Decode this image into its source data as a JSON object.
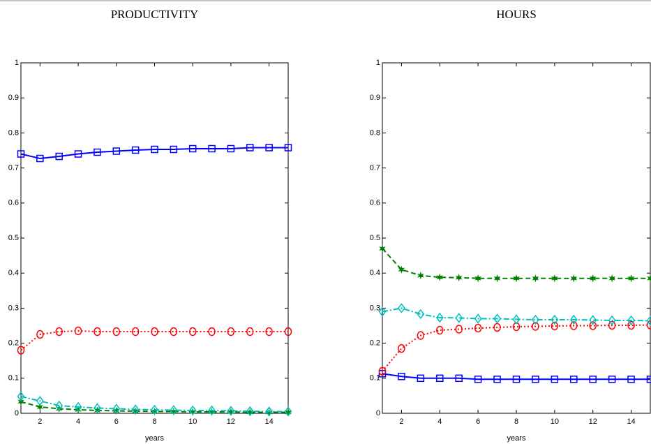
{
  "chart_data": [
    {
      "type": "line",
      "title": "PRODUCTIVITY",
      "xlabel": "years",
      "x": [
        1,
        2,
        3,
        4,
        5,
        6,
        7,
        8,
        9,
        10,
        11,
        12,
        13,
        14,
        15
      ],
      "xlim": [
        1,
        15
      ],
      "xticks": [
        2,
        4,
        6,
        8,
        10,
        12,
        14
      ],
      "ylim": [
        0,
        1
      ],
      "yticks": [
        0,
        0.1,
        0.2,
        0.3,
        0.4,
        0.5,
        0.6,
        0.7,
        0.8,
        0.9,
        1
      ],
      "series": [
        {
          "color": "#0000ff",
          "linestyle": "solid",
          "marker": "square",
          "values": [
            0.74,
            0.727,
            0.733,
            0.74,
            0.745,
            0.748,
            0.751,
            0.753,
            0.753,
            0.755,
            0.755,
            0.755,
            0.758,
            0.758,
            0.758
          ]
        },
        {
          "color": "#ff0000",
          "linestyle": "dotted",
          "marker": "circle",
          "values": [
            0.18,
            0.225,
            0.233,
            0.235,
            0.233,
            0.233,
            0.233,
            0.233,
            0.233,
            0.233,
            0.233,
            0.233,
            0.233,
            0.233,
            0.233
          ]
        },
        {
          "color": "#008000",
          "linestyle": "dashed",
          "marker": "star",
          "values": [
            0.033,
            0.018,
            0.013,
            0.01,
            0.008,
            0.007,
            0.006,
            0.005,
            0.005,
            0.004,
            0.004,
            0.004,
            0.003,
            0.003,
            0.003
          ]
        },
        {
          "color": "#00bfbf",
          "linestyle": "dashdot",
          "marker": "diamond",
          "values": [
            0.048,
            0.035,
            0.022,
            0.018,
            0.015,
            0.013,
            0.011,
            0.01,
            0.009,
            0.008,
            0.008,
            0.007,
            0.006,
            0.005,
            0.005
          ]
        }
      ]
    },
    {
      "type": "line",
      "title": "HOURS",
      "xlabel": "years",
      "x": [
        1,
        2,
        3,
        4,
        5,
        6,
        7,
        8,
        9,
        10,
        11,
        12,
        13,
        14,
        15
      ],
      "xlim": [
        1,
        15
      ],
      "xticks": [
        2,
        4,
        6,
        8,
        10,
        12,
        14
      ],
      "ylim": [
        0,
        1
      ],
      "yticks": [
        0,
        0.1,
        0.2,
        0.3,
        0.4,
        0.5,
        0.6,
        0.7,
        0.8,
        0.9,
        1
      ],
      "series": [
        {
          "color": "#0000ff",
          "linestyle": "solid",
          "marker": "square",
          "values": [
            0.113,
            0.105,
            0.1,
            0.1,
            0.1,
            0.097,
            0.097,
            0.097,
            0.097,
            0.097,
            0.097,
            0.097,
            0.097,
            0.097,
            0.097
          ]
        },
        {
          "color": "#ff0000",
          "linestyle": "dotted",
          "marker": "circle",
          "values": [
            0.12,
            0.185,
            0.222,
            0.237,
            0.24,
            0.243,
            0.245,
            0.247,
            0.248,
            0.249,
            0.25,
            0.25,
            0.251,
            0.251,
            0.252
          ]
        },
        {
          "color": "#008000",
          "linestyle": "dashed",
          "marker": "star",
          "values": [
            0.47,
            0.41,
            0.393,
            0.388,
            0.387,
            0.385,
            0.385,
            0.385,
            0.385,
            0.385,
            0.385,
            0.385,
            0.385,
            0.385,
            0.385
          ]
        },
        {
          "color": "#00bfbf",
          "linestyle": "dashdot",
          "marker": "diamond",
          "values": [
            0.29,
            0.3,
            0.283,
            0.273,
            0.272,
            0.27,
            0.27,
            0.268,
            0.267,
            0.267,
            0.267,
            0.266,
            0.265,
            0.265,
            0.264
          ]
        }
      ]
    }
  ]
}
